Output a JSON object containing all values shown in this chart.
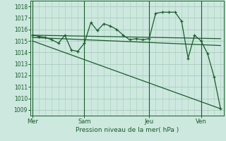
{
  "bg_color": "#cce8df",
  "grid_color": "#aaccbb",
  "line_color": "#1a5c2a",
  "xlabel": "Pression niveau de la mer( hPa )",
  "ylim": [
    1008.5,
    1018.5
  ],
  "yticks": [
    1009,
    1010,
    1011,
    1012,
    1013,
    1014,
    1015,
    1016,
    1017,
    1018
  ],
  "xlim": [
    -0.3,
    29.5
  ],
  "xtick_labels": [
    "Mer",
    "Sam",
    "Jeu",
    "Ven"
  ],
  "xtick_positions": [
    0,
    8,
    18,
    26
  ],
  "vline_positions": [
    0,
    8,
    18,
    26
  ],
  "series1_x": [
    0,
    1,
    2,
    3,
    4,
    5,
    6,
    7,
    8,
    9,
    10,
    11,
    12,
    13,
    14,
    15,
    16,
    17,
    18,
    19,
    20,
    21,
    22,
    23,
    24,
    25,
    26,
    27,
    28,
    29
  ],
  "series1_y": [
    1015.5,
    1015.4,
    1015.3,
    1015.1,
    1014.8,
    1015.5,
    1014.2,
    1014.1,
    1014.8,
    1016.6,
    1015.9,
    1016.5,
    1016.3,
    1016.0,
    1015.5,
    1015.1,
    1015.2,
    1015.1,
    1015.2,
    1017.4,
    1017.5,
    1017.5,
    1017.5,
    1016.7,
    1013.5,
    1015.5,
    1015.0,
    1013.9,
    1011.9,
    1009.1
  ],
  "series2_x": [
    0,
    29
  ],
  "series2_y": [
    1015.5,
    1015.2
  ],
  "series3_x": [
    0,
    29
  ],
  "series3_y": [
    1015.3,
    1014.6
  ],
  "series4_x": [
    0,
    29
  ],
  "series4_y": [
    1015.0,
    1009.1
  ]
}
